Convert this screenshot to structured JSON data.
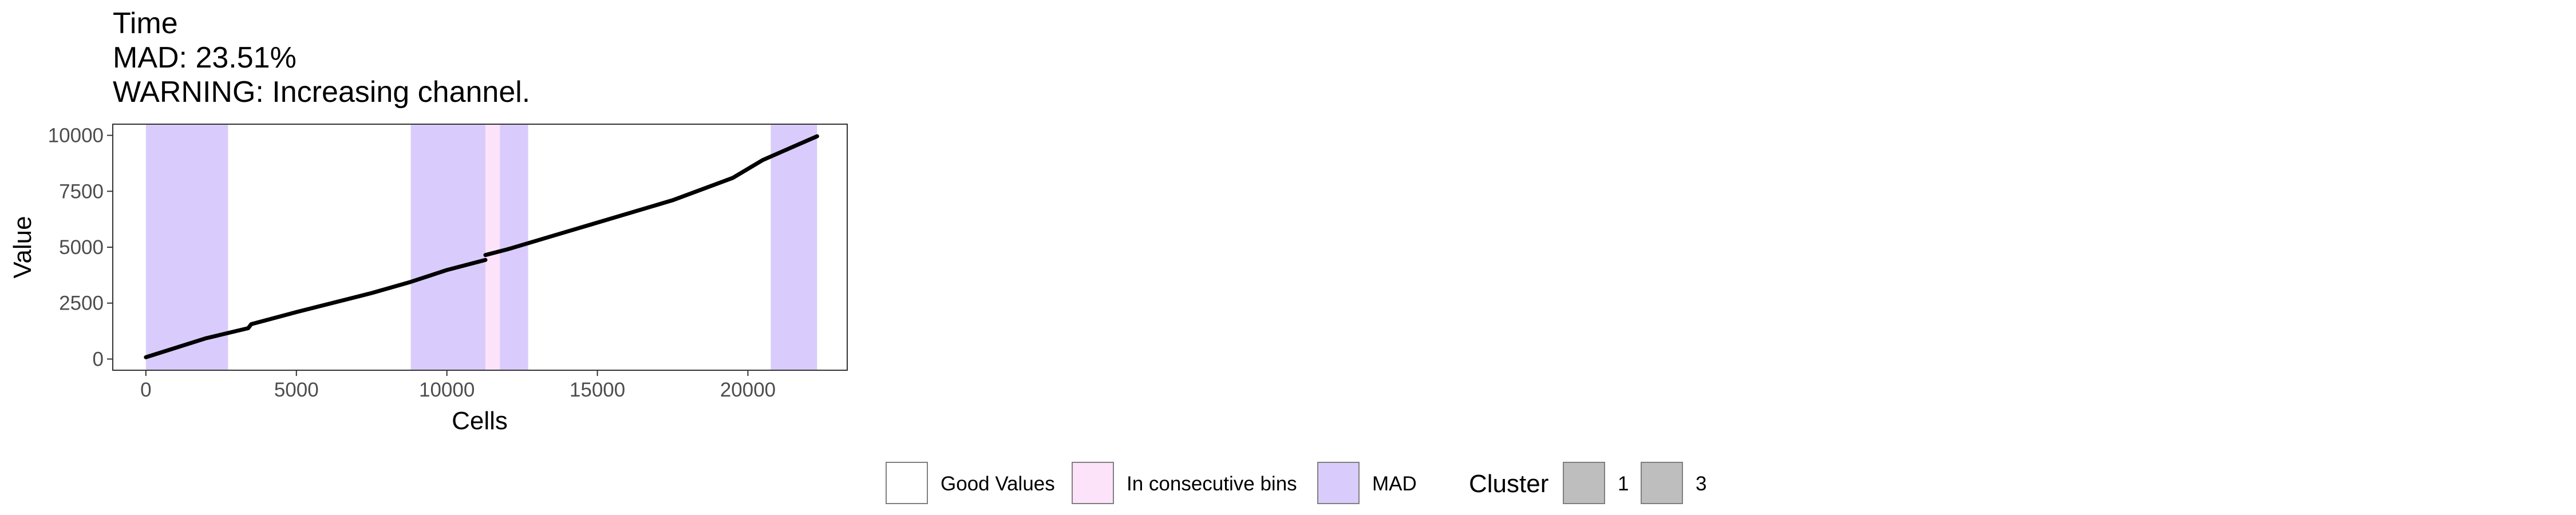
{
  "chart_data": {
    "type": "line",
    "title_lines": [
      "Time",
      "MAD: 23.51%",
      "WARNING: Increasing channel."
    ],
    "xlabel": "Cells",
    "ylabel": "Value",
    "xlim": [
      -1100,
      23300
    ],
    "ylim": [
      -500,
      10500
    ],
    "x_ticks": [
      0,
      5000,
      10000,
      15000,
      20000
    ],
    "x_tick_labels": [
      "0",
      "5000",
      "10000",
      "15000",
      "20000"
    ],
    "y_ticks": [
      0,
      2500,
      5000,
      7500,
      10000
    ],
    "y_tick_labels": [
      "0",
      "2500",
      "5000",
      "7500",
      "10000"
    ],
    "grid": false,
    "regions": [
      {
        "start": 0,
        "end": 2730,
        "category": "MAD"
      },
      {
        "start": 8800,
        "end": 11280,
        "category": "MAD"
      },
      {
        "start": 11280,
        "end": 11760,
        "category": "In consecutive bins"
      },
      {
        "start": 11760,
        "end": 12700,
        "category": "MAD"
      },
      {
        "start": 20760,
        "end": 22300,
        "category": "MAD"
      }
    ],
    "series": [
      {
        "cluster": "1",
        "x": [
          0,
          2000,
          3400,
          3500,
          5000,
          7500,
          8800,
          10000,
          11280
        ],
        "y": [
          80,
          930,
          1380,
          1560,
          2100,
          2950,
          3450,
          3980,
          4430
        ]
      },
      {
        "cluster": "3",
        "x": [
          11280,
          12000,
          13500,
          15000,
          17500,
          19500,
          20500,
          22300
        ],
        "y": [
          4650,
          4900,
          5500,
          6100,
          7100,
          8100,
          8900,
          9960
        ]
      }
    ],
    "legend": {
      "fill_entries": [
        {
          "label": "Good Values",
          "color": "#ffffff"
        },
        {
          "label": "In consecutive bins",
          "color": "#fce3fa"
        },
        {
          "label": "MAD",
          "color": "#d9ccfc"
        }
      ],
      "cluster_title": "Cluster",
      "cluster_entries": [
        {
          "label": "1",
          "color": "#bebebe"
        },
        {
          "label": "3",
          "color": "#bebebe"
        }
      ],
      "placement": "bottom"
    },
    "colors": {
      "mad": "#d9ccfc",
      "consecutive": "#fce3fa",
      "line": "#000000",
      "ribbon": "#a0a0a0"
    }
  }
}
